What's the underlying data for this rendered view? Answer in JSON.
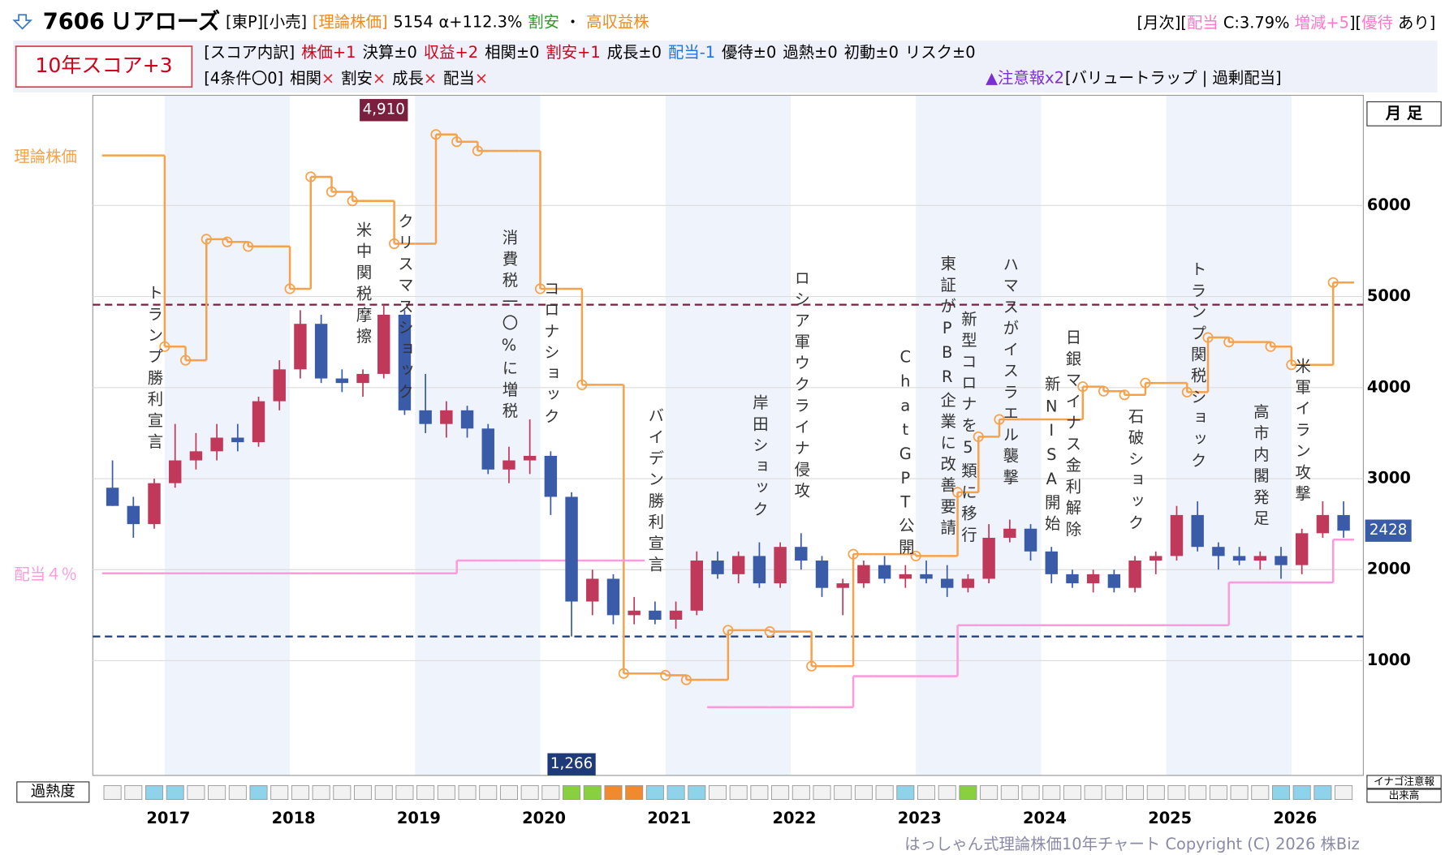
{
  "header": {
    "line1": [
      {
        "text": "7606",
        "color": "#000000",
        "bold": true
      },
      {
        "text": "Ｕアローズ",
        "color": "#000000",
        "bold": true
      },
      {
        "text": "[東P][小売]",
        "color": "#000000"
      },
      {
        "text": "[理論株価]",
        "color": "#f08a1c"
      },
      {
        "text": "5154",
        "color": "#000000"
      },
      {
        "text": "α+112.3%",
        "color": "#000000"
      },
      {
        "text": "割安",
        "color": "#2e9a2e"
      },
      {
        "text": "・",
        "color": "#000000"
      },
      {
        "text": "高収益株",
        "color": "#f08a1c"
      }
    ],
    "line1_right": [
      {
        "text": "[月次][",
        "color": "#000000"
      },
      {
        "text": "配当",
        "color": "#ff77cc"
      },
      {
        "text": " C:3.79% ",
        "color": "#000000"
      },
      {
        "text": "増減+5",
        "color": "#ff77cc"
      },
      {
        "text": "][",
        "color": "#000000"
      },
      {
        "text": "優待",
        "color": "#ff77cc"
      },
      {
        "text": " あり]",
        "color": "#000000"
      }
    ],
    "score": "10年スコア+3",
    "breakdown": [
      {
        "text": "[スコア内訳]",
        "color": "#000000"
      },
      {
        "text": "株価+1",
        "color": "#d0021b"
      },
      {
        "text": "決算±0",
        "color": "#000000"
      },
      {
        "text": "収益+2",
        "color": "#d0021b"
      },
      {
        "text": "相関±0",
        "color": "#000000"
      },
      {
        "text": "割安+1",
        "color": "#d0021b"
      },
      {
        "text": "成長±0",
        "color": "#000000"
      },
      {
        "text": "配当-1",
        "color": "#1a73e8"
      },
      {
        "text": "優待±0",
        "color": "#000000"
      },
      {
        "text": "過熱±0",
        "color": "#000000"
      },
      {
        "text": "初動±0",
        "color": "#000000"
      },
      {
        "text": "リスク±0",
        "color": "#000000"
      }
    ],
    "conditions_label": "[4条件〇0]",
    "conditions": [
      {
        "name": "相関",
        "mark": "×"
      },
      {
        "name": "割安",
        "mark": "×"
      },
      {
        "name": "成長",
        "mark": "×"
      },
      {
        "name": "配当",
        "mark": "×"
      }
    ],
    "warning": "▲注意報x2",
    "warning_detail": "[バリュートラップ | 過剰配当]"
  },
  "chart_data": {
    "type": "candlestick",
    "period": "月 足",
    "categories": [
      null,
      null,
      null,
      "2017",
      null,
      null,
      null,
      null,
      null,
      "2018",
      null,
      null,
      null,
      null,
      null,
      "2019",
      null,
      null,
      null,
      null,
      null,
      "2020",
      null,
      null,
      null,
      null,
      null,
      "2021",
      null,
      null,
      null,
      null,
      null,
      "2022",
      null,
      null,
      null,
      null,
      null,
      "2023",
      null,
      null,
      null,
      null,
      null,
      "2024",
      null,
      null,
      null,
      null,
      null,
      "2025",
      null,
      null,
      null,
      null,
      null,
      "2026",
      null,
      null
    ],
    "open": [
      2900,
      2700,
      2500,
      2950,
      3200,
      3300,
      3450,
      3400,
      3850,
      4200,
      4700,
      4100,
      4050,
      4150,
      4800,
      3750,
      3600,
      3750,
      3550,
      3100,
      3200,
      3250,
      2800,
      1650,
      1900,
      1500,
      1550,
      1450,
      1550,
      2100,
      1950,
      2150,
      1850,
      2250,
      2100,
      1800,
      1850,
      2050,
      1900,
      1950,
      1900,
      1800,
      1900,
      2350,
      2450,
      2200,
      1950,
      1850,
      1950,
      1800,
      2100,
      2150,
      2600,
      2250,
      2150,
      2100,
      2150,
      2050,
      2400,
      2600
    ],
    "high": [
      3200,
      2800,
      3000,
      3600,
      3500,
      3600,
      3600,
      3900,
      4300,
      4850,
      4800,
      4200,
      4200,
      4910,
      4850,
      4150,
      3850,
      3800,
      3600,
      3350,
      3650,
      3300,
      2850,
      2000,
      1950,
      1700,
      1650,
      1650,
      2200,
      2200,
      2200,
      2300,
      2300,
      2400,
      2150,
      1900,
      2100,
      2150,
      2050,
      2100,
      2050,
      1950,
      2500,
      2550,
      2500,
      2250,
      2000,
      2000,
      2000,
      2150,
      2200,
      2700,
      2750,
      2300,
      2250,
      2200,
      2250,
      2450,
      2750,
      2750
    ],
    "low": [
      2700,
      2350,
      2450,
      2900,
      3100,
      3200,
      3300,
      3350,
      3750,
      4100,
      4050,
      3950,
      3900,
      4100,
      3700,
      3500,
      3450,
      3450,
      3050,
      2950,
      3050,
      2600,
      1266,
      1500,
      1400,
      1400,
      1400,
      1350,
      1500,
      1900,
      1850,
      1800,
      1800,
      2000,
      1700,
      1500,
      1800,
      1850,
      1800,
      1850,
      1700,
      1750,
      1850,
      2300,
      2100,
      1850,
      1800,
      1750,
      1750,
      1750,
      1950,
      2100,
      2200,
      2000,
      2050,
      2000,
      1900,
      1950,
      2350,
      2350
    ],
    "close": [
      2700,
      2500,
      2950,
      3200,
      3300,
      3450,
      3400,
      3850,
      4200,
      4700,
      4100,
      4050,
      4150,
      4800,
      3750,
      3600,
      3750,
      3550,
      3100,
      3200,
      3250,
      2800,
      1650,
      1900,
      1500,
      1550,
      1450,
      1550,
      2100,
      1950,
      2150,
      1850,
      2250,
      2100,
      1800,
      1850,
      2050,
      1900,
      1950,
      1900,
      1800,
      1900,
      2350,
      2450,
      2200,
      1950,
      1850,
      1950,
      1800,
      2100,
      2150,
      2600,
      2250,
      2150,
      2100,
      2150,
      2050,
      2400,
      2600,
      2428
    ],
    "up_color": "#c0395a",
    "down_color": "#3a5ba8",
    "series": [
      {
        "name": "理論株価",
        "color": "#f7a24a",
        "values": [
          6550,
          6550,
          6550,
          4450,
          4300,
          5630,
          5600,
          5550,
          5550,
          5085,
          6315,
          6150,
          6050,
          6050,
          5580,
          5580,
          6780,
          6700,
          6600,
          6600,
          6600,
          5085,
          5085,
          4030,
          4030,
          860,
          860,
          840,
          790,
          790,
          1335,
          1335,
          1320,
          1320,
          940,
          940,
          2170,
          2170,
          2170,
          2150,
          2150,
          2850,
          3460,
          3650,
          3650,
          3650,
          3650,
          4010,
          3960,
          3920,
          4050,
          4050,
          3950,
          4550,
          4500,
          4500,
          4450,
          4250,
          4250,
          5154
        ]
      },
      {
        "name": "配当４％",
        "color": "#ff99dd",
        "values": [
          1960,
          1960,
          1960,
          1960,
          1960,
          1960,
          1960,
          1960,
          1960,
          1960,
          1960,
          1960,
          1960,
          1960,
          1960,
          1960,
          1960,
          2100,
          2100,
          2100,
          2100,
          2100,
          2100,
          2100,
          2100,
          2100,
          null,
          null,
          null,
          490,
          490,
          490,
          490,
          490,
          490,
          490,
          830,
          830,
          830,
          830,
          830,
          1390,
          1390,
          1390,
          1390,
          1390,
          1390,
          1390,
          1390,
          1390,
          1390,
          1390,
          1390,
          1390,
          1860,
          1860,
          1860,
          1860,
          1860,
          2330
        ]
      }
    ],
    "references": [
      {
        "value": 4910,
        "label": "4,910",
        "color": "#7a1f3d"
      },
      {
        "value": 1266,
        "label": "1,266",
        "color": "#1f3a78"
      }
    ],
    "events": [
      null,
      null,
      "トランプ勝利宣言",
      null,
      null,
      null,
      null,
      null,
      null,
      null,
      null,
      null,
      "米中関税摩擦",
      null,
      "クリスマスショック",
      null,
      null,
      null,
      null,
      "消費税一〇%に増税",
      null,
      "コロナショック",
      null,
      null,
      null,
      null,
      "バイデン勝利宣言",
      null,
      null,
      null,
      null,
      "岸田ショック",
      null,
      "ロシア軍ウクライナ侵攻",
      null,
      null,
      null,
      null,
      "ChatGPT公開",
      null,
      "東証がPBR企業に改善要請",
      "新型コロナを5類に移行",
      null,
      "ハマスがイスラエル襲撃",
      null,
      "新NISA開始",
      "日銀マイナス金利解除",
      null,
      null,
      "石破ショック",
      null,
      null,
      "トランプ関税ショック",
      null,
      null,
      "高市内閣発足",
      null,
      "米軍イラン攻撃",
      null,
      null
    ],
    "heat_label": "過熱度",
    "heat": [
      0,
      0,
      1,
      1,
      0,
      0,
      0,
      1,
      0,
      0,
      0,
      0,
      0,
      0,
      0,
      0,
      0,
      0,
      0,
      0,
      0,
      0,
      2,
      2,
      3,
      3,
      1,
      1,
      1,
      0,
      0,
      0,
      0,
      0,
      0,
      0,
      0,
      0,
      1,
      0,
      0,
      2,
      0,
      0,
      0,
      0,
      0,
      0,
      0,
      0,
      0,
      0,
      0,
      0,
      0,
      0,
      1,
      1,
      1,
      0
    ],
    "heat_colors": [
      "#f2f2f2",
      "#8fd3ea",
      "#88d040",
      "#f08a30"
    ],
    "side_labels": [
      "イナゴ注意報",
      "出来高"
    ],
    "ylim": [
      -260,
      7210
    ],
    "yticks": [
      1000,
      2000,
      3000,
      4000,
      5000,
      6000
    ],
    "grid": true
  },
  "footer": {
    "copyright": "はっしゃん式理論株価10年チャート Copyright (C) 2026 株Biz"
  }
}
